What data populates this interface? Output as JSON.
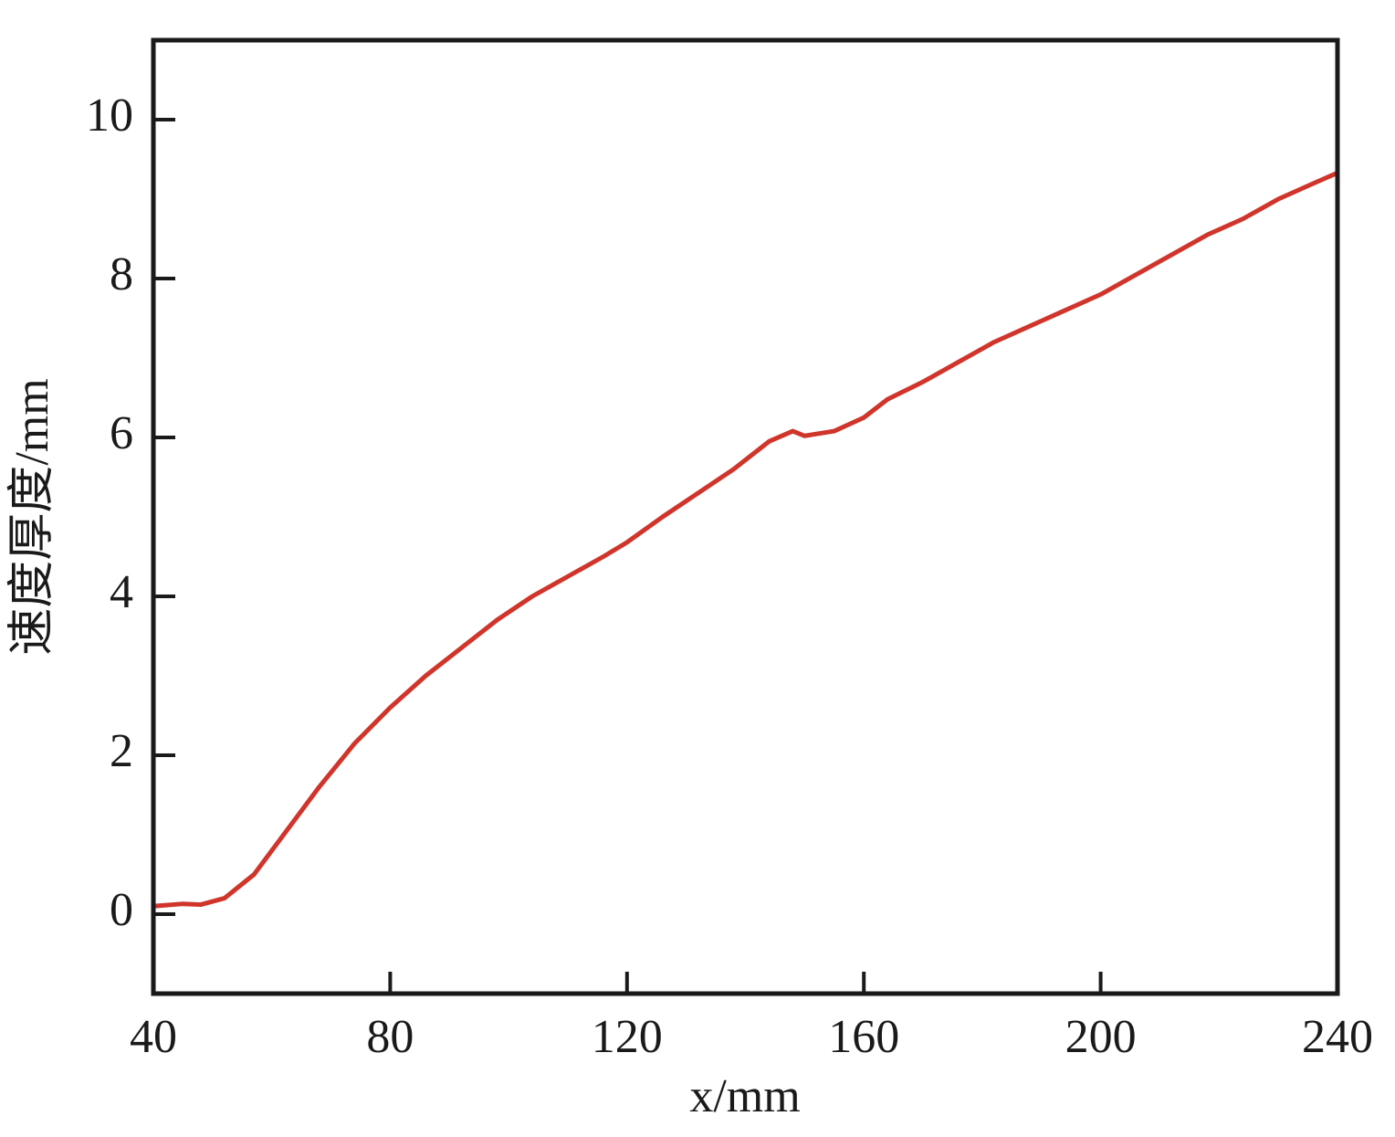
{
  "chart_data": {
    "type": "line",
    "x_label": "x/mm",
    "y_label": "速度厚度/mm",
    "x": [
      40,
      45,
      48,
      52,
      57,
      62,
      68,
      74,
      80,
      86,
      92,
      98,
      104,
      110,
      116,
      120,
      126,
      132,
      138,
      144,
      148,
      150,
      155,
      160,
      164,
      170,
      176,
      182,
      188,
      194,
      200,
      206,
      212,
      218,
      224,
      230,
      236,
      240
    ],
    "values": [
      0.1,
      0.13,
      0.12,
      0.2,
      0.5,
      1.0,
      1.6,
      2.15,
      2.6,
      3.0,
      3.35,
      3.7,
      4.0,
      4.25,
      4.5,
      4.68,
      5.0,
      5.3,
      5.6,
      5.95,
      6.08,
      6.02,
      6.08,
      6.25,
      6.48,
      6.7,
      6.95,
      7.2,
      7.4,
      7.6,
      7.8,
      8.05,
      8.3,
      8.55,
      8.75,
      9.0,
      9.2,
      9.33
    ],
    "color": "#d0352b",
    "xlim": [
      40,
      240
    ],
    "xticks": [
      40,
      80,
      120,
      160,
      200,
      240
    ],
    "ylim": [
      -1,
      11
    ],
    "yticks": [
      0,
      2,
      4,
      6,
      8,
      10
    ]
  }
}
